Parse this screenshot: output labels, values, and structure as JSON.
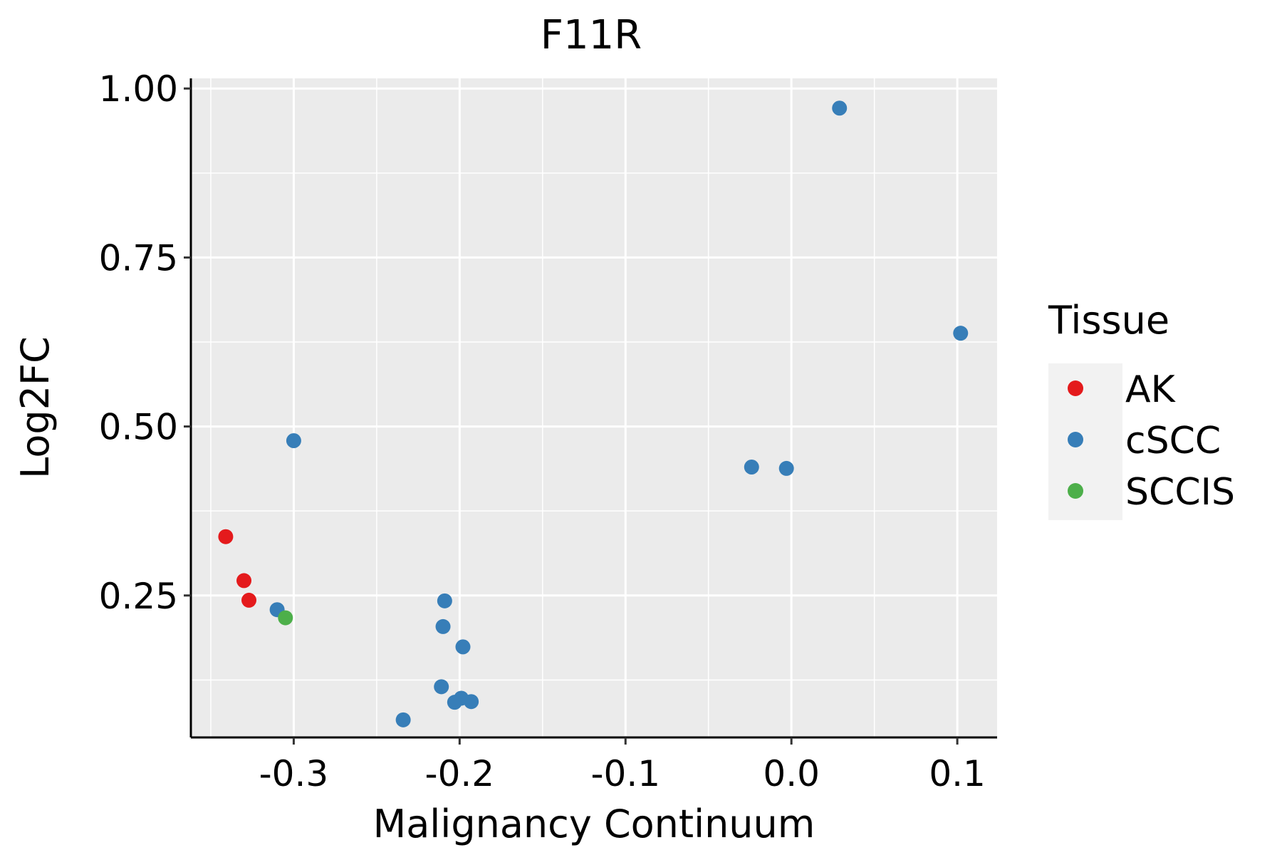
{
  "chart_data": {
    "type": "scatter",
    "title": "F11R",
    "xlabel": "Malignancy Continuum",
    "ylabel": "Log2FC",
    "xlim": [
      -0.362,
      0.124
    ],
    "ylim": [
      0.04,
      1.015
    ],
    "xticks": [
      -0.3,
      -0.2,
      -0.1,
      0.0,
      0.1
    ],
    "xtick_labels": [
      "-0.3",
      "-0.2",
      "-0.1",
      "0.0",
      "0.1"
    ],
    "yticks": [
      0.25,
      0.5,
      0.75,
      1.0
    ],
    "ytick_labels": [
      "0.25",
      "0.50",
      "0.75",
      "1.00"
    ],
    "grid": true,
    "legend": {
      "title": "Tissue",
      "placement": "right",
      "entries": [
        {
          "name": "AK",
          "color": "#E41A1C"
        },
        {
          "name": "cSCC",
          "color": "#377EB8"
        },
        {
          "name": "SCCIS",
          "color": "#4DAF4A"
        }
      ]
    },
    "series": [
      {
        "name": "AK",
        "color": "#E41A1C",
        "points": [
          {
            "x": -0.341,
            "y": 0.337
          },
          {
            "x": -0.33,
            "y": 0.272
          },
          {
            "x": -0.327,
            "y": 0.243
          }
        ]
      },
      {
        "name": "cSCC",
        "color": "#377EB8",
        "points": [
          {
            "x": -0.3,
            "y": 0.479
          },
          {
            "x": -0.31,
            "y": 0.229
          },
          {
            "x": -0.209,
            "y": 0.242
          },
          {
            "x": -0.21,
            "y": 0.204
          },
          {
            "x": -0.198,
            "y": 0.174
          },
          {
            "x": -0.211,
            "y": 0.115
          },
          {
            "x": -0.199,
            "y": 0.098
          },
          {
            "x": -0.203,
            "y": 0.092
          },
          {
            "x": -0.193,
            "y": 0.093
          },
          {
            "x": -0.234,
            "y": 0.066
          },
          {
            "x": -0.024,
            "y": 0.44
          },
          {
            "x": -0.003,
            "y": 0.438
          },
          {
            "x": 0.029,
            "y": 0.971
          },
          {
            "x": 0.102,
            "y": 0.638
          }
        ]
      },
      {
        "name": "SCCIS",
        "color": "#4DAF4A",
        "points": [
          {
            "x": -0.305,
            "y": 0.217
          }
        ]
      }
    ]
  }
}
